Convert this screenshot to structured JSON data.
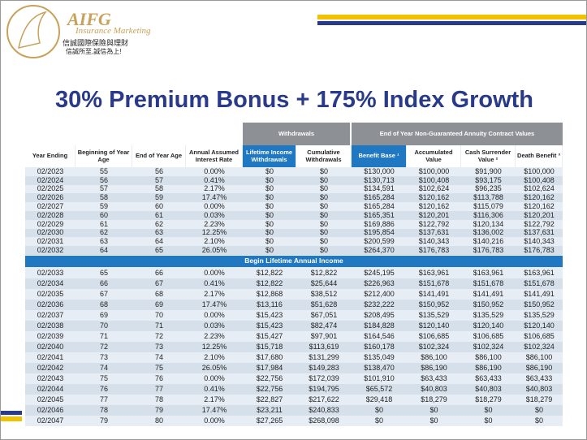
{
  "header": {
    "logo_name": "AIFG",
    "logo_sub": "Insurance Marketing",
    "logo_chinese": "信誠國際保險與理財",
    "logo_slogan": "信誠所至,誠信為上!"
  },
  "title": "30% Premium Bonus + 175% Index Growth",
  "table": {
    "group_headers": [
      "Withdrawals",
      "End of Year Non-Guaranteed Annuity Contract Values"
    ],
    "columns": [
      "Year Ending",
      "Beginning of Year Age",
      "End of Year Age",
      "Annual Assumed Interest Rate",
      "Lifetime Income Withdrawals",
      "Cumulative Withdrawals",
      "Benefit Base ¹",
      "Accumulated Value",
      "Cash Surrender Value ²",
      "Death Benefit ³"
    ],
    "rows": [
      [
        "02/2023",
        "55",
        "56",
        "0.00%",
        "$0",
        "$0",
        "$130,000",
        "$100,000",
        "$91,900",
        "$100,000"
      ],
      [
        "02/2024",
        "56",
        "57",
        "0.41%",
        "$0",
        "$0",
        "$130,713",
        "$100,408",
        "$93,175",
        "$100,408"
      ],
      [
        "02/2025",
        "57",
        "58",
        "2.17%",
        "$0",
        "$0",
        "$134,591",
        "$102,624",
        "$96,235",
        "$102,624"
      ],
      [
        "02/2026",
        "58",
        "59",
        "17.47%",
        "$0",
        "$0",
        "$165,284",
        "$120,162",
        "$113,788",
        "$120,162"
      ],
      [
        "02/2027",
        "59",
        "60",
        "0.00%",
        "$0",
        "$0",
        "$165,284",
        "$120,162",
        "$115,079",
        "$120,162"
      ],
      [
        "02/2028",
        "60",
        "61",
        "0.03%",
        "$0",
        "$0",
        "$165,351",
        "$120,201",
        "$116,306",
        "$120,201"
      ],
      [
        "02/2029",
        "61",
        "62",
        "2.23%",
        "$0",
        "$0",
        "$169,886",
        "$122,792",
        "$120,134",
        "$122,792"
      ],
      [
        "02/2030",
        "62",
        "63",
        "12.25%",
        "$0",
        "$0",
        "$195,854",
        "$137,631",
        "$136,002",
        "$137,631"
      ],
      [
        "02/2031",
        "63",
        "64",
        "2.10%",
        "$0",
        "$0",
        "$200,599",
        "$140,343",
        "$140,216",
        "$140,343"
      ],
      [
        "02/2032",
        "64",
        "65",
        "26.05%",
        "$0",
        "$0",
        "$264,370",
        "$176,783",
        "$176,783",
        "$176,783"
      ]
    ],
    "banner": "Begin Lifetime Annual Income",
    "rows_after": [
      [
        "02/2033",
        "65",
        "66",
        "0.00%",
        "$12,822",
        "$12,822",
        "$245,195",
        "$163,961",
        "$163,961",
        "$163,961"
      ],
      [
        "02/2034",
        "66",
        "67",
        "0.41%",
        "$12,822",
        "$25,644",
        "$226,963",
        "$151,678",
        "$151,678",
        "$151,678"
      ],
      [
        "02/2035",
        "67",
        "68",
        "2.17%",
        "$12,868",
        "$38,512",
        "$212,400",
        "$141,491",
        "$141,491",
        "$141,491"
      ],
      [
        "02/2036",
        "68",
        "69",
        "17.47%",
        "$13,116",
        "$51,628",
        "$232,222",
        "$150,952",
        "$150,952",
        "$150,952"
      ],
      [
        "02/2037",
        "69",
        "70",
        "0.00%",
        "$15,423",
        "$67,051",
        "$208,495",
        "$135,529",
        "$135,529",
        "$135,529"
      ],
      [
        "02/2038",
        "70",
        "71",
        "0.03%",
        "$15,423",
        "$82,474",
        "$184,828",
        "$120,140",
        "$120,140",
        "$120,140"
      ],
      [
        "02/2039",
        "71",
        "72",
        "2.23%",
        "$15,427",
        "$97,901",
        "$164,546",
        "$106,685",
        "$106,685",
        "$106,685"
      ],
      [
        "02/2040",
        "72",
        "73",
        "12.25%",
        "$15,718",
        "$113,619",
        "$160,178",
        "$102,324",
        "$102,324",
        "$102,324"
      ],
      [
        "02/2041",
        "73",
        "74",
        "2.10%",
        "$17,680",
        "$131,299",
        "$135,049",
        "$86,100",
        "$86,100",
        "$86,100"
      ],
      [
        "02/2042",
        "74",
        "75",
        "26.05%",
        "$17,984",
        "$149,283",
        "$138,470",
        "$86,190",
        "$86,190",
        "$86,190"
      ],
      [
        "02/2043",
        "75",
        "76",
        "0.00%",
        "$22,756",
        "$172,039",
        "$101,910",
        "$63,433",
        "$63,433",
        "$63,433"
      ],
      [
        "02/2044",
        "76",
        "77",
        "0.41%",
        "$22,756",
        "$194,795",
        "$65,572",
        "$40,803",
        "$40,803",
        "$40,803"
      ],
      [
        "02/2045",
        "77",
        "78",
        "2.17%",
        "$22,827",
        "$217,622",
        "$29,418",
        "$18,279",
        "$18,279",
        "$18,279"
      ],
      [
        "02/2046",
        "78",
        "79",
        "17.47%",
        "$23,211",
        "$240,833",
        "$0",
        "$0",
        "$0",
        "$0"
      ],
      [
        "02/2047",
        "79",
        "80",
        "0.00%",
        "$27,265",
        "$268,098",
        "$0",
        "$0",
        "$0",
        "$0"
      ]
    ]
  }
}
